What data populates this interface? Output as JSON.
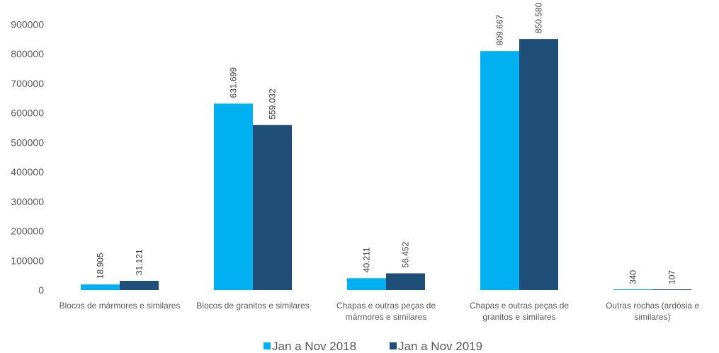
{
  "chart_data": {
    "type": "bar",
    "title": "",
    "xlabel": "",
    "ylabel": "",
    "ylim": [
      0,
      900000
    ],
    "yticks": [
      0,
      100000,
      200000,
      300000,
      400000,
      500000,
      600000,
      700000,
      800000,
      900000
    ],
    "ytick_labels": [
      "0",
      "100000",
      "200000",
      "300000",
      "400000",
      "500000",
      "600000",
      "700000",
      "800000",
      "900000"
    ],
    "grid": false,
    "legend_position": "bottom",
    "categories": [
      [
        "Blocos de mármores e similares"
      ],
      [
        "Blocos de granitos e similares"
      ],
      [
        "Chapas e outras peças de",
        "mármores e similares"
      ],
      [
        "Chapas e outras peças de",
        "granitos e similares"
      ],
      [
        "Outras rochas (ardósia e",
        "similares)"
      ]
    ],
    "series": [
      {
        "name": "Jan a Nov 2018",
        "color": "#00B0F0",
        "values": [
          18905,
          631699,
          40211,
          809667,
          340
        ],
        "labels": [
          "18.905",
          "631.699",
          "40.211",
          "809.667",
          "340"
        ]
      },
      {
        "name": "Jan a Nov 2019",
        "color": "#1F4E79",
        "values": [
          31121,
          559032,
          56452,
          850580,
          107
        ],
        "labels": [
          "31.121",
          "559.032",
          "56.452",
          "850.580",
          "107"
        ]
      }
    ]
  }
}
